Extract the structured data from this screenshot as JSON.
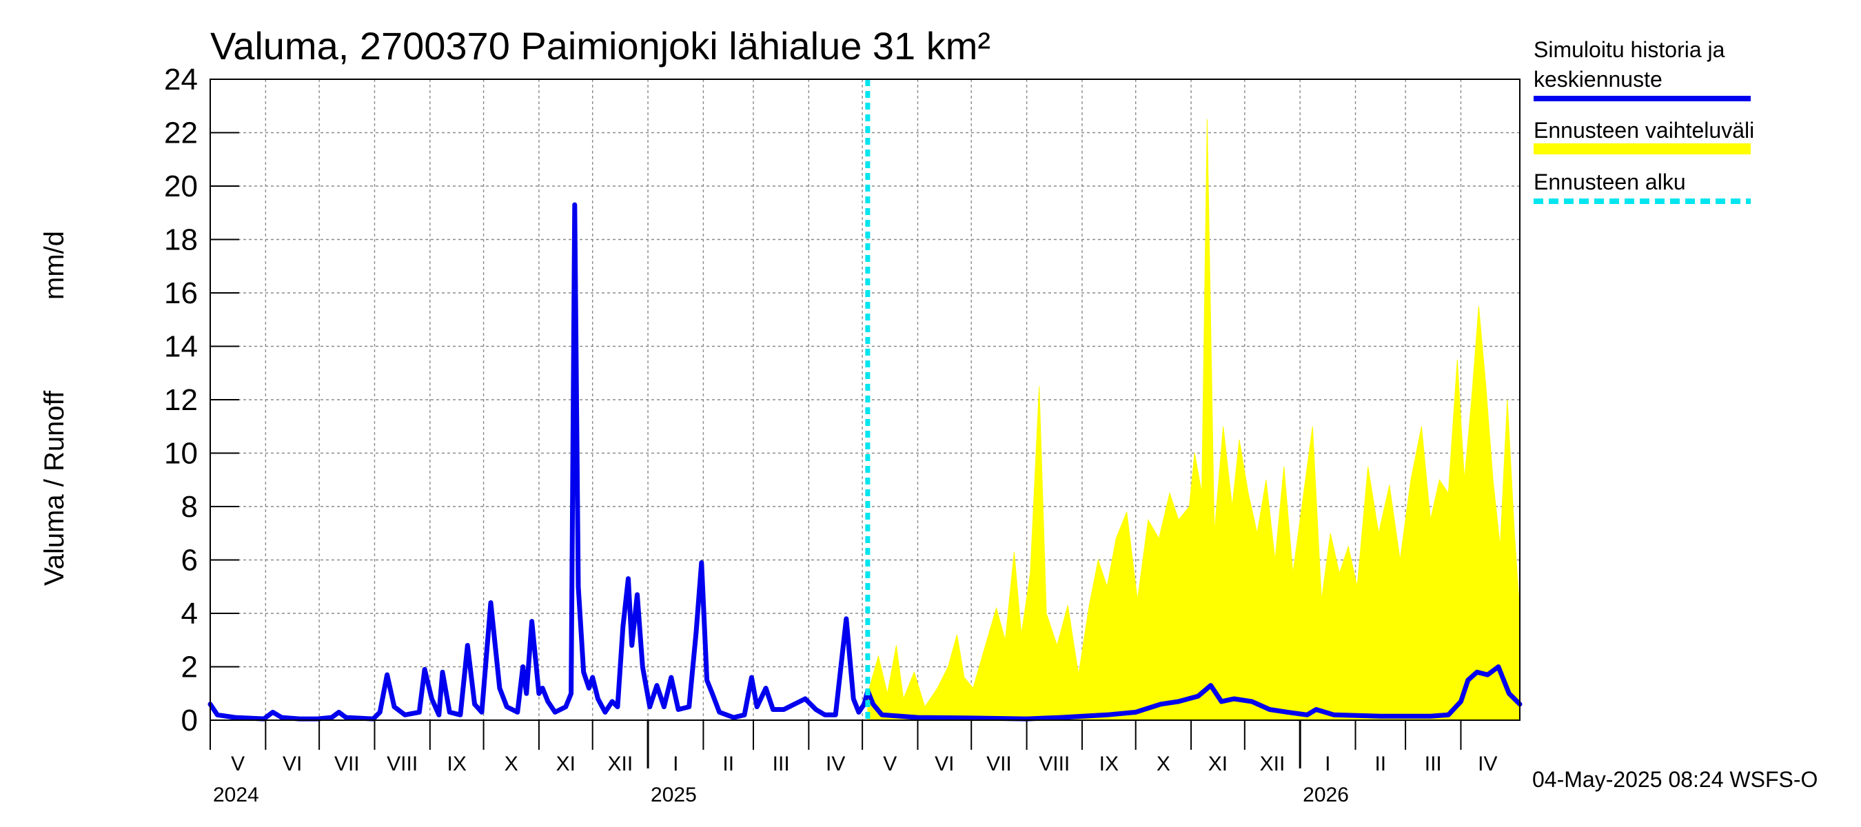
{
  "chart_data": {
    "type": "area",
    "title": "Valuma, 2700370 Paimionjoki lähialue 31 km²",
    "ylabel_left": "Valuma / Runoff",
    "ylabel_unit": "mm/d",
    "ylim": [
      0,
      24
    ],
    "yticks": [
      "0",
      "2",
      "4",
      "6",
      "8",
      "10",
      "12",
      "14",
      "16",
      "18",
      "20",
      "22",
      "24"
    ],
    "x_range": [
      "2024-05-01",
      "2026-05-04"
    ],
    "grid": true,
    "forecast_start": "2025-05-04",
    "months": [
      {
        "label": "V",
        "start": "2024-05-01",
        "end": "2024-06-01"
      },
      {
        "label": "VI",
        "start": "2024-06-01",
        "end": "2024-07-01"
      },
      {
        "label": "VII",
        "start": "2024-07-01",
        "end": "2024-08-01"
      },
      {
        "label": "VIII",
        "start": "2024-08-01",
        "end": "2024-09-01"
      },
      {
        "label": "IX",
        "start": "2024-09-01",
        "end": "2024-10-01"
      },
      {
        "label": "X",
        "start": "2024-10-01",
        "end": "2024-11-01"
      },
      {
        "label": "XI",
        "start": "2024-11-01",
        "end": "2024-12-01"
      },
      {
        "label": "XII",
        "start": "2024-12-01",
        "end": "2025-01-01"
      },
      {
        "label": "I",
        "start": "2025-01-01",
        "end": "2025-02-01"
      },
      {
        "label": "II",
        "start": "2025-02-01",
        "end": "2025-03-01"
      },
      {
        "label": "III",
        "start": "2025-03-01",
        "end": "2025-04-01"
      },
      {
        "label": "IV",
        "start": "2025-04-01",
        "end": "2025-05-01"
      },
      {
        "label": "V",
        "start": "2025-05-01",
        "end": "2025-06-01"
      },
      {
        "label": "VI",
        "start": "2025-06-01",
        "end": "2025-07-01"
      },
      {
        "label": "VII",
        "start": "2025-07-01",
        "end": "2025-08-01"
      },
      {
        "label": "VIII",
        "start": "2025-08-01",
        "end": "2025-09-01"
      },
      {
        "label": "IX",
        "start": "2025-09-01",
        "end": "2025-10-01"
      },
      {
        "label": "X",
        "start": "2025-10-01",
        "end": "2025-11-01"
      },
      {
        "label": "XI",
        "start": "2025-11-01",
        "end": "2025-12-01"
      },
      {
        "label": "XII",
        "start": "2025-12-01",
        "end": "2026-01-01"
      },
      {
        "label": "I",
        "start": "2026-01-01",
        "end": "2026-02-01"
      },
      {
        "label": "II",
        "start": "2026-02-01",
        "end": "2026-03-01"
      },
      {
        "label": "III",
        "start": "2026-03-01",
        "end": "2026-04-01"
      },
      {
        "label": "IV",
        "start": "2026-04-01",
        "end": "2026-05-01"
      }
    ],
    "years": [
      {
        "label": "2024",
        "date": "2024-05-01"
      },
      {
        "label": "2025",
        "date": "2025-01-01"
      },
      {
        "label": "2026",
        "date": "2026-01-01"
      }
    ],
    "legend": [
      {
        "label_lines": [
          "Simuloitu historia ja",
          "keskiennuste"
        ],
        "color": "#0000ee",
        "style": "solid"
      },
      {
        "label_lines": [
          "Ennusteen vaihteluväli"
        ],
        "color": "#ffff00",
        "style": "solid"
      },
      {
        "label_lines": [
          "Ennusteen alku"
        ],
        "color": "#00e5ee",
        "style": "dashed"
      }
    ],
    "legend_placement": "right",
    "timestamp": "04-May-2025 08:24 WSFS-O",
    "series": [
      {
        "name": "Simuloitu historia ja keskiennuste",
        "color": "#0000ee",
        "points": [
          [
            "2024-05-01",
            0.6
          ],
          [
            "2024-05-05",
            0.2
          ],
          [
            "2024-05-15",
            0.1
          ],
          [
            "2024-05-31",
            0.05
          ],
          [
            "2024-06-05",
            0.3
          ],
          [
            "2024-06-10",
            0.1
          ],
          [
            "2024-06-20",
            0.05
          ],
          [
            "2024-06-30",
            0.05
          ],
          [
            "2024-07-08",
            0.1
          ],
          [
            "2024-07-12",
            0.3
          ],
          [
            "2024-07-16",
            0.1
          ],
          [
            "2024-07-31",
            0.05
          ],
          [
            "2024-08-01",
            0.1
          ],
          [
            "2024-08-04",
            0.3
          ],
          [
            "2024-08-08",
            1.7
          ],
          [
            "2024-08-12",
            0.5
          ],
          [
            "2024-08-18",
            0.2
          ],
          [
            "2024-08-26",
            0.3
          ],
          [
            "2024-08-29",
            1.9
          ],
          [
            "2024-09-02",
            0.8
          ],
          [
            "2024-09-06",
            0.2
          ],
          [
            "2024-09-08",
            1.8
          ],
          [
            "2024-09-12",
            0.3
          ],
          [
            "2024-09-18",
            0.2
          ],
          [
            "2024-09-22",
            2.8
          ],
          [
            "2024-09-26",
            0.6
          ],
          [
            "2024-09-30",
            0.3
          ],
          [
            "2024-10-05",
            4.4
          ],
          [
            "2024-10-10",
            1.2
          ],
          [
            "2024-10-14",
            0.5
          ],
          [
            "2024-10-20",
            0.3
          ],
          [
            "2024-10-23",
            2.0
          ],
          [
            "2024-10-25",
            1.0
          ],
          [
            "2024-10-28",
            3.7
          ],
          [
            "2024-11-01",
            1.0
          ],
          [
            "2024-11-03",
            1.2
          ],
          [
            "2024-11-06",
            0.7
          ],
          [
            "2024-11-10",
            0.3
          ],
          [
            "2024-11-16",
            0.5
          ],
          [
            "2024-11-19",
            1.0
          ],
          [
            "2024-11-21",
            19.3
          ],
          [
            "2024-11-23",
            5.0
          ],
          [
            "2024-11-26",
            1.8
          ],
          [
            "2024-11-29",
            1.2
          ],
          [
            "2024-12-01",
            1.6
          ],
          [
            "2024-12-04",
            0.8
          ],
          [
            "2024-12-08",
            0.3
          ],
          [
            "2024-12-12",
            0.7
          ],
          [
            "2024-12-15",
            0.5
          ],
          [
            "2024-12-18",
            3.5
          ],
          [
            "2024-12-21",
            5.3
          ],
          [
            "2024-12-23",
            2.8
          ],
          [
            "2024-12-26",
            4.7
          ],
          [
            "2024-12-29",
            2.0
          ],
          [
            "2025-01-02",
            0.5
          ],
          [
            "2025-01-06",
            1.3
          ],
          [
            "2025-01-10",
            0.5
          ],
          [
            "2025-01-14",
            1.6
          ],
          [
            "2025-01-18",
            0.4
          ],
          [
            "2025-01-24",
            0.5
          ],
          [
            "2025-01-28",
            3.3
          ],
          [
            "2025-01-31",
            5.9
          ],
          [
            "2025-02-03",
            1.5
          ],
          [
            "2025-02-06",
            1.0
          ],
          [
            "2025-02-10",
            0.3
          ],
          [
            "2025-02-18",
            0.1
          ],
          [
            "2025-02-24",
            0.2
          ],
          [
            "2025-02-28",
            1.6
          ],
          [
            "2025-03-03",
            0.5
          ],
          [
            "2025-03-08",
            1.2
          ],
          [
            "2025-03-12",
            0.4
          ],
          [
            "2025-03-18",
            0.4
          ],
          [
            "2025-03-24",
            0.6
          ],
          [
            "2025-03-30",
            0.8
          ],
          [
            "2025-04-05",
            0.4
          ],
          [
            "2025-04-10",
            0.2
          ],
          [
            "2025-04-16",
            0.2
          ],
          [
            "2025-04-22",
            3.8
          ],
          [
            "2025-04-26",
            0.8
          ],
          [
            "2025-04-29",
            0.3
          ],
          [
            "2025-05-02",
            0.6
          ],
          [
            "2025-05-04",
            1.1
          ],
          [
            "2025-05-07",
            0.6
          ],
          [
            "2025-05-12",
            0.2
          ],
          [
            "2025-06-01",
            0.1
          ],
          [
            "2025-07-01",
            0.08
          ],
          [
            "2025-08-01",
            0.05
          ],
          [
            "2025-08-20",
            0.1
          ],
          [
            "2025-09-15",
            0.2
          ],
          [
            "2025-10-01",
            0.3
          ],
          [
            "2025-10-15",
            0.6
          ],
          [
            "2025-10-25",
            0.7
          ],
          [
            "2025-11-05",
            0.9
          ],
          [
            "2025-11-12",
            1.3
          ],
          [
            "2025-11-18",
            0.7
          ],
          [
            "2025-11-25",
            0.8
          ],
          [
            "2025-12-05",
            0.7
          ],
          [
            "2025-12-15",
            0.4
          ],
          [
            "2025-12-25",
            0.3
          ],
          [
            "2026-01-05",
            0.2
          ],
          [
            "2026-01-10",
            0.4
          ],
          [
            "2026-01-20",
            0.2
          ],
          [
            "2026-02-15",
            0.15
          ],
          [
            "2026-03-15",
            0.15
          ],
          [
            "2026-03-25",
            0.2
          ],
          [
            "2026-04-01",
            0.7
          ],
          [
            "2026-04-05",
            1.5
          ],
          [
            "2026-04-10",
            1.8
          ],
          [
            "2026-04-16",
            1.7
          ],
          [
            "2026-04-22",
            2.0
          ],
          [
            "2026-04-28",
            1.0
          ],
          [
            "2026-05-04",
            0.6
          ]
        ]
      },
      {
        "name": "Ennusteen vaihteluväli",
        "color": "#ffff00",
        "upper": [
          [
            "2025-05-04",
            1.0
          ],
          [
            "2025-05-10",
            2.4
          ],
          [
            "2025-05-15",
            1.0
          ],
          [
            "2025-05-20",
            2.8
          ],
          [
            "2025-05-24",
            0.8
          ],
          [
            "2025-05-30",
            1.8
          ],
          [
            "2025-06-05",
            0.5
          ],
          [
            "2025-06-12",
            1.2
          ],
          [
            "2025-06-18",
            2.0
          ],
          [
            "2025-06-23",
            3.2
          ],
          [
            "2025-06-27",
            1.6
          ],
          [
            "2025-07-02",
            1.2
          ],
          [
            "2025-07-08",
            2.6
          ],
          [
            "2025-07-15",
            4.2
          ],
          [
            "2025-07-20",
            3.0
          ],
          [
            "2025-07-25",
            6.3
          ],
          [
            "2025-07-29",
            3.2
          ],
          [
            "2025-08-03",
            5.5
          ],
          [
            "2025-08-08",
            12.5
          ],
          [
            "2025-08-12",
            4.0
          ],
          [
            "2025-08-18",
            2.8
          ],
          [
            "2025-08-24",
            4.3
          ],
          [
            "2025-08-30",
            1.7
          ],
          [
            "2025-09-05",
            4.3
          ],
          [
            "2025-09-10",
            6.0
          ],
          [
            "2025-09-15",
            5.0
          ],
          [
            "2025-09-20",
            6.8
          ],
          [
            "2025-09-26",
            7.8
          ],
          [
            "2025-10-02",
            4.5
          ],
          [
            "2025-10-08",
            7.5
          ],
          [
            "2025-10-14",
            6.8
          ],
          [
            "2025-10-20",
            8.5
          ],
          [
            "2025-10-25",
            7.5
          ],
          [
            "2025-10-31",
            8.0
          ],
          [
            "2025-11-03",
            10.0
          ],
          [
            "2025-11-07",
            8.5
          ],
          [
            "2025-11-10",
            22.5
          ],
          [
            "2025-11-14",
            7.0
          ],
          [
            "2025-11-19",
            11.0
          ],
          [
            "2025-11-24",
            8.0
          ],
          [
            "2025-11-28",
            10.5
          ],
          [
            "2025-12-03",
            8.5
          ],
          [
            "2025-12-08",
            7.0
          ],
          [
            "2025-12-13",
            9.0
          ],
          [
            "2025-12-18",
            6.0
          ],
          [
            "2025-12-23",
            9.5
          ],
          [
            "2025-12-28",
            5.5
          ],
          [
            "2026-01-03",
            8.5
          ],
          [
            "2026-01-08",
            11.0
          ],
          [
            "2026-01-13",
            4.5
          ],
          [
            "2026-01-18",
            7.0
          ],
          [
            "2026-01-23",
            5.5
          ],
          [
            "2026-01-28",
            6.5
          ],
          [
            "2026-02-02",
            5.0
          ],
          [
            "2026-02-08",
            9.5
          ],
          [
            "2026-02-14",
            7.0
          ],
          [
            "2026-02-20",
            8.8
          ],
          [
            "2026-02-26",
            6.0
          ],
          [
            "2026-03-04",
            9.0
          ],
          [
            "2026-03-10",
            11.0
          ],
          [
            "2026-03-15",
            7.5
          ],
          [
            "2026-03-20",
            9.0
          ],
          [
            "2026-03-25",
            8.5
          ],
          [
            "2026-03-30",
            13.5
          ],
          [
            "2026-04-03",
            9.0
          ],
          [
            "2026-04-07",
            12.0
          ],
          [
            "2026-04-11",
            15.5
          ],
          [
            "2026-04-15",
            12.5
          ],
          [
            "2026-04-19",
            9.0
          ],
          [
            "2026-04-23",
            6.5
          ],
          [
            "2026-04-27",
            12.0
          ],
          [
            "2026-05-01",
            7.0
          ],
          [
            "2026-05-04",
            4.0
          ]
        ],
        "lower": [
          [
            "2025-05-04",
            0.0
          ],
          [
            "2026-05-04",
            0.0
          ]
        ]
      }
    ]
  }
}
